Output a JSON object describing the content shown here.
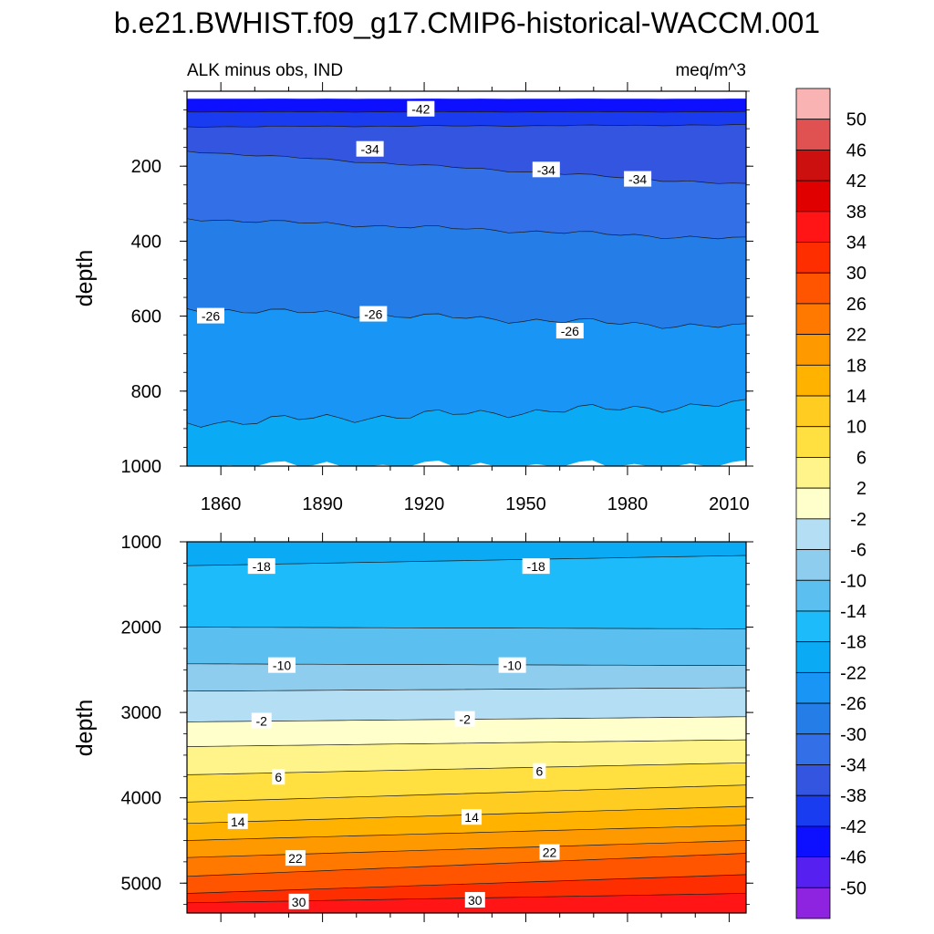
{
  "chart_data": {
    "type": "heatmap",
    "title": "b.e21.BWHIST.f09_g17.CMIP6-historical-WACCM.001",
    "left_subtitle": "ALK minus obs, IND",
    "right_subtitle": "meq/m^3",
    "colorbar": {
      "labels": [
        "50",
        "46",
        "42",
        "38",
        "34",
        "30",
        "26",
        "22",
        "18",
        "14",
        "10",
        "6",
        "2",
        "-2",
        "-6",
        "-10",
        "-14",
        "-18",
        "-22",
        "-26",
        "-30",
        "-34",
        "-38",
        "-42",
        "-46",
        "-50"
      ],
      "colors": [
        "#f9b3b3",
        "#e05252",
        "#cc1010",
        "#e00000",
        "#ff1515",
        "#ff2e00",
        "#ff5500",
        "#ff7800",
        "#ff9900",
        "#ffb300",
        "#ffcc22",
        "#ffe040",
        "#fff48a",
        "#ffffcc",
        "#b3def3",
        "#8fcdee",
        "#5bc0f0",
        "#1ebbfb",
        "#0aaaf5",
        "#1996f5",
        "#257ee8",
        "#3370e8",
        "#3355e0",
        "#1a3cf0",
        "#0d10ff",
        "#5520f0",
        "#8e24e0"
      ]
    },
    "panels": [
      {
        "name": "upper",
        "xlabel": "",
        "ylabel": "depth",
        "xlim": [
          1850,
          2015
        ],
        "ylim": [
          1000,
          0
        ],
        "xticks": [
          "1860",
          "1890",
          "1920",
          "1950",
          "1980",
          "2010"
        ],
        "yticks": [
          "200",
          "400",
          "600",
          "800",
          "1000"
        ],
        "bands": [
          {
            "color": "#0d10ff",
            "top": [
              20,
              20
            ],
            "bottom": [
              55,
              55
            ]
          },
          {
            "color": "#1a3cf0",
            "top": [
              55,
              55
            ],
            "bottom": [
              95,
              90
            ]
          },
          {
            "color": "#3355e0",
            "top": [
              95,
              90
            ],
            "bottom": [
              160,
              250
            ]
          },
          {
            "color": "#3370e8",
            "top": [
              160,
              250
            ],
            "bottom": [
              340,
              395
            ]
          },
          {
            "color": "#257ee8",
            "top": [
              340,
              395
            ],
            "bottom": [
              580,
              630
            ]
          },
          {
            "color": "#1996f5",
            "top": [
              580,
              630
            ],
            "bottom": [
              885,
              835
            ]
          },
          {
            "color": "#0aaaf5",
            "top": [
              885,
              835
            ],
            "bottom": [
              1000,
              1000
            ]
          }
        ],
        "contour_labels": [
          {
            "text": "-42",
            "x": 1919,
            "y": 48
          },
          {
            "text": "-34",
            "x": 1904,
            "y": 155
          },
          {
            "text": "-34",
            "x": 1956,
            "y": 210
          },
          {
            "text": "-34",
            "x": 1983,
            "y": 235
          },
          {
            "text": "-26",
            "x": 1857,
            "y": 600
          },
          {
            "text": "-26",
            "x": 1905,
            "y": 595
          },
          {
            "text": "-26",
            "x": 1963,
            "y": 640
          }
        ]
      },
      {
        "name": "lower",
        "xlabel": "",
        "ylabel": "depth",
        "xlim": [
          1850,
          2015
        ],
        "ylim": [
          5350,
          1000
        ],
        "xticks": [],
        "yticks": [
          "1000",
          "2000",
          "3000",
          "4000",
          "5000"
        ],
        "bands": [
          {
            "color": "#0aaaf5",
            "top": [
              1000,
              1000
            ],
            "bottom": [
              1280,
              1160
            ]
          },
          {
            "color": "#1ebbfb",
            "top": [
              1280,
              1160
            ],
            "bottom": [
              2000,
              2020
            ]
          },
          {
            "color": "#5bc0f0",
            "top": [
              2000,
              2020
            ],
            "bottom": [
              2430,
              2450
            ]
          },
          {
            "color": "#8fcdee",
            "top": [
              2430,
              2450
            ],
            "bottom": [
              2750,
              2710
            ]
          },
          {
            "color": "#b3def3",
            "top": [
              2750,
              2710
            ],
            "bottom": [
              3110,
              3050
            ]
          },
          {
            "color": "#ffffcc",
            "top": [
              3110,
              3050
            ],
            "bottom": [
              3400,
              3320
            ]
          },
          {
            "color": "#fff48a",
            "top": [
              3400,
              3320
            ],
            "bottom": [
              3730,
              3590
            ]
          },
          {
            "color": "#ffe040",
            "top": [
              3730,
              3590
            ],
            "bottom": [
              4050,
              3850
            ]
          },
          {
            "color": "#ffcc22",
            "top": [
              4050,
              3850
            ],
            "bottom": [
              4300,
              4100
            ]
          },
          {
            "color": "#ffb300",
            "top": [
              4300,
              4100
            ],
            "bottom": [
              4500,
              4320
            ]
          },
          {
            "color": "#ff9900",
            "top": [
              4500,
              4320
            ],
            "bottom": [
              4700,
              4500
            ]
          },
          {
            "color": "#ff7800",
            "top": [
              4700,
              4500
            ],
            "bottom": [
              4920,
              4650
            ]
          },
          {
            "color": "#ff5500",
            "top": [
              4920,
              4650
            ],
            "bottom": [
              5120,
              4900
            ]
          },
          {
            "color": "#ff2e00",
            "top": [
              5120,
              4900
            ],
            "bottom": [
              5230,
              5120
            ]
          },
          {
            "color": "#ff1515",
            "top": [
              5230,
              5120
            ],
            "bottom": [
              5350,
              5350
            ]
          }
        ],
        "contour_labels": [
          {
            "text": "-18",
            "x": 1872,
            "y": 1290
          },
          {
            "text": "-18",
            "x": 1953,
            "y": 1290
          },
          {
            "text": "-10",
            "x": 1878,
            "y": 2450
          },
          {
            "text": "-10",
            "x": 1946,
            "y": 2450
          },
          {
            "text": "-2",
            "x": 1872,
            "y": 3100
          },
          {
            "text": "-2",
            "x": 1932,
            "y": 3080
          },
          {
            "text": "6",
            "x": 1877,
            "y": 3760
          },
          {
            "text": "6",
            "x": 1954,
            "y": 3690
          },
          {
            "text": "14",
            "x": 1865,
            "y": 4280
          },
          {
            "text": "14",
            "x": 1934,
            "y": 4230
          },
          {
            "text": "22",
            "x": 1882,
            "y": 4710
          },
          {
            "text": "22",
            "x": 1957,
            "y": 4640
          },
          {
            "text": "30",
            "x": 1883,
            "y": 5220
          },
          {
            "text": "30",
            "x": 1935,
            "y": 5200
          }
        ]
      }
    ]
  }
}
